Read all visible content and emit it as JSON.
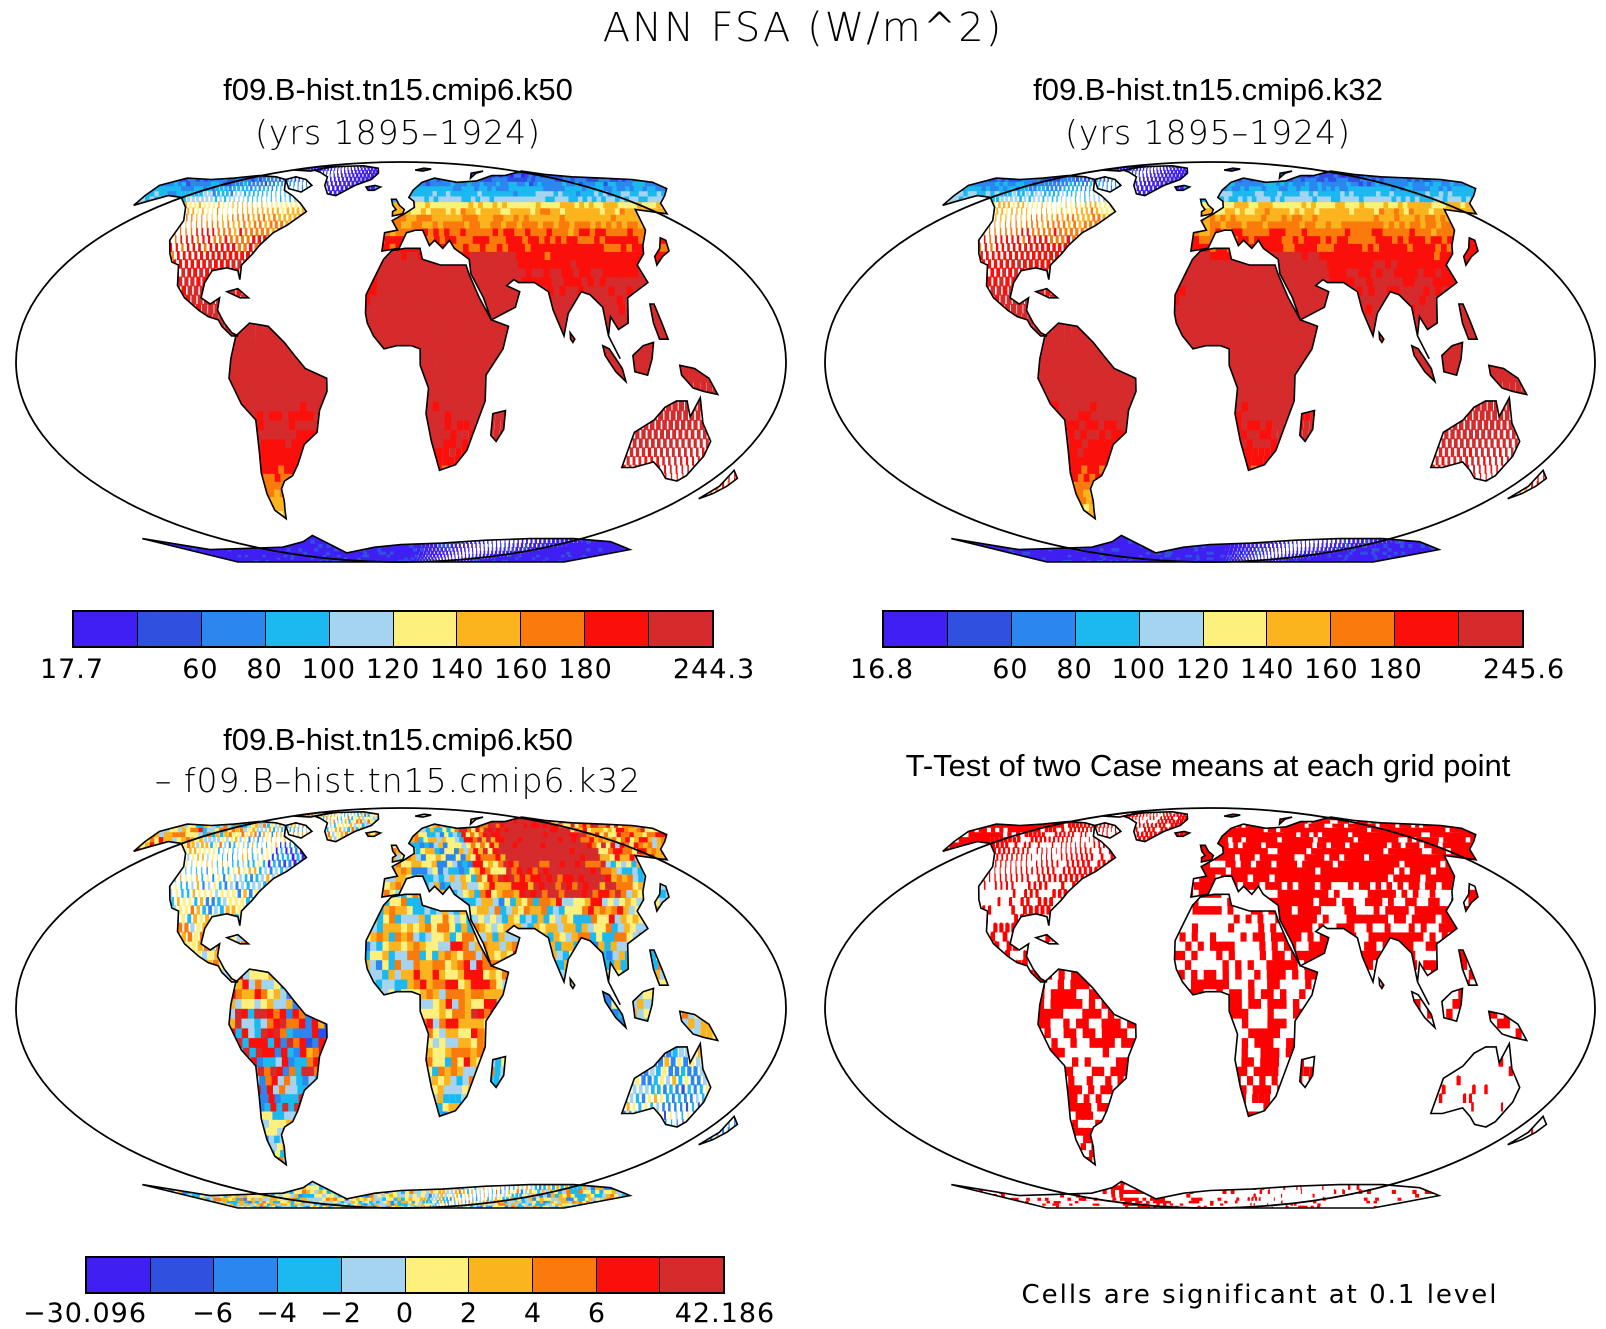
{
  "main_title": "ANN FSA (W/m^2)",
  "panels": [
    {
      "case": "f09.B-hist.tn15.cmip6.k50",
      "years": "(yrs 1895–1924)"
    },
    {
      "case": "f09.B-hist.tn15.cmip6.k32",
      "years": "(yrs 1895–1924)"
    },
    {
      "case": "f09.B-hist.tn15.cmip6.k50",
      "minus": "– f09.B–hist.tn15.cmip6.k32"
    },
    {
      "title": "T-Test of two Case means at each grid point",
      "note": "Cells are significant at 0.1 level"
    }
  ],
  "colorbars": {
    "abs_colors": [
      "#3f1ff2",
      "#3050e0",
      "#2c86f0",
      "#1cb8f0",
      "#a4d4f0",
      "#fdf07c",
      "#fbb41e",
      "#fb7a0c",
      "#fb0f0a",
      "#d52b2c"
    ],
    "panel1_ticks": [
      "17.7",
      "60",
      "80",
      "100",
      "120",
      "140",
      "160",
      "180",
      "244.3"
    ],
    "panel2_ticks": [
      "16.8",
      "60",
      "80",
      "100",
      "120",
      "140",
      "160",
      "180",
      "245.6"
    ],
    "diff_ticks": [
      "−30.096",
      "−6",
      "−4",
      "−2",
      "0",
      "2",
      "4",
      "6",
      "42.186"
    ]
  },
  "significance_color": "#ff0000"
}
